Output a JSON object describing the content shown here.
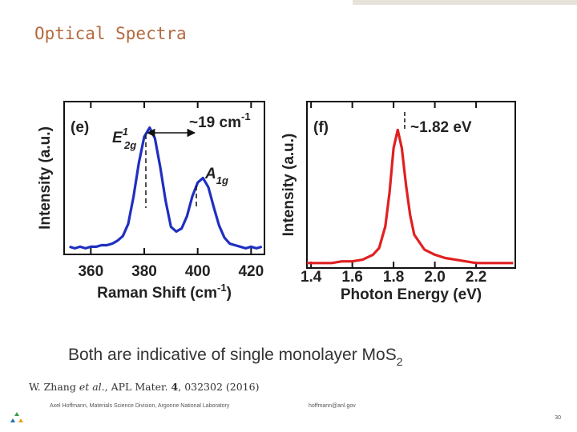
{
  "slide": {
    "title": "Optical Spectra",
    "caption": {
      "text": "Both are indicative of single monolayer MoS",
      "sub": "2"
    },
    "reference": [
      "W. Zhang ",
      "et al.",
      ", APL Mater. ",
      "4",
      ", 032302 (2016)"
    ],
    "footer_author": "Axel Hoffmann, Materials Science Division, Argonne National Laboratory",
    "footer_email": "hoffmann@anl.gov",
    "page_number": "30"
  },
  "chart_data": [
    {
      "type": "line",
      "panel": "(e)",
      "ylabel": "Intensity (a.u.)",
      "xlabel": {
        "text": "Raman Shift (cm",
        "sup": "-1",
        "tail": ")"
      },
      "annotations": {
        "e2g": {
          "text": "E",
          "sup": "1",
          "sub": "2g"
        },
        "a1g": {
          "text": "A",
          "sub": "1g"
        },
        "shift": {
          "text": "~19 cm",
          "sup": "-1"
        }
      },
      "xlim": [
        350,
        425
      ],
      "ylim": [
        0,
        1
      ],
      "xticks": [
        360,
        380,
        400,
        420
      ],
      "color": "#1f2fc0",
      "x": [
        352,
        354,
        356,
        358,
        360,
        362,
        364,
        366,
        368,
        370,
        372,
        374,
        376,
        378,
        380,
        382,
        384,
        386,
        388,
        390,
        392,
        394,
        396,
        398,
        400,
        402,
        404,
        406,
        408,
        410,
        412,
        414,
        416,
        418,
        420,
        422,
        424
      ],
      "values": [
        0.05,
        0.04,
        0.05,
        0.04,
        0.05,
        0.05,
        0.06,
        0.06,
        0.07,
        0.09,
        0.12,
        0.2,
        0.38,
        0.6,
        0.77,
        0.83,
        0.76,
        0.57,
        0.35,
        0.18,
        0.15,
        0.17,
        0.25,
        0.38,
        0.47,
        0.5,
        0.44,
        0.31,
        0.19,
        0.11,
        0.07,
        0.06,
        0.05,
        0.04,
        0.05,
        0.04,
        0.05
      ]
    },
    {
      "type": "line",
      "panel": "(f)",
      "ylabel": "Intensity (a.u.)",
      "xlabel": {
        "text": "Photon Energy (eV)"
      },
      "annotations": {
        "peak": {
          "text": "~1.82 eV"
        }
      },
      "xlim": [
        1.38,
        2.39
      ],
      "ylim": [
        0,
        1
      ],
      "xticks": [
        1.4,
        1.6,
        1.8,
        {
          "value": 2,
          "label": "2.0"
        },
        2.2
      ],
      "color": "#e02020",
      "x": [
        1.38,
        1.45,
        1.5,
        1.55,
        1.6,
        1.65,
        1.7,
        1.73,
        1.76,
        1.78,
        1.8,
        1.82,
        1.84,
        1.86,
        1.88,
        1.9,
        1.95,
        2.0,
        2.05,
        2.1,
        2.15,
        2.2,
        2.25,
        2.3,
        2.38
      ],
      "values": [
        0.03,
        0.03,
        0.03,
        0.04,
        0.04,
        0.05,
        0.08,
        0.12,
        0.25,
        0.45,
        0.72,
        0.83,
        0.72,
        0.5,
        0.32,
        0.2,
        0.11,
        0.08,
        0.06,
        0.05,
        0.04,
        0.03,
        0.03,
        0.03,
        0.03
      ]
    }
  ]
}
